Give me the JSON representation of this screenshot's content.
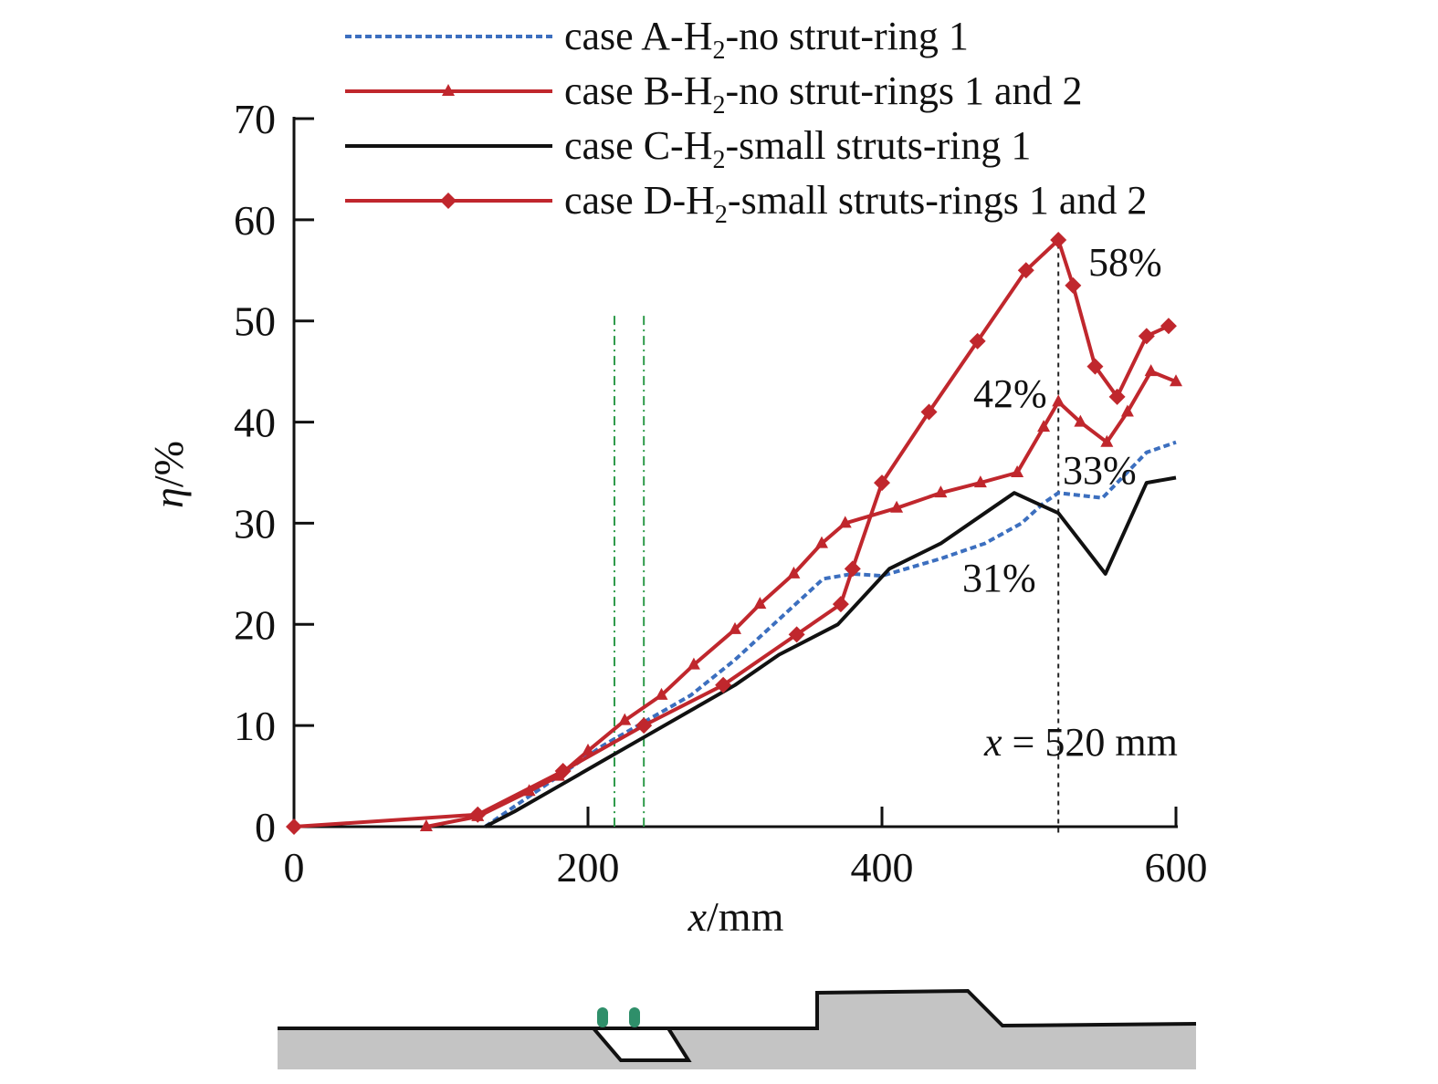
{
  "chart_data": {
    "type": "line",
    "xlabel": "x/mm",
    "ylabel": "η/%",
    "xlim": [
      0,
      600
    ],
    "ylim": [
      0,
      70
    ],
    "xticks": [
      0,
      200,
      400,
      600
    ],
    "yticks": [
      0,
      10,
      20,
      30,
      40,
      50,
      60,
      70
    ],
    "grid": false,
    "legend_position": "top",
    "series": [
      {
        "key": "A",
        "name": "case A-H2-no strut-ring 1",
        "legend_parts": [
          "case A-H",
          "2",
          "-no strut-ring 1"
        ],
        "color": "#3c6fbf",
        "style": "dotted",
        "marker": "none",
        "x": [
          130,
          150,
          180,
          210,
          240,
          270,
          300,
          330,
          360,
          380,
          400,
          440,
          470,
          495,
          510,
          520,
          550,
          580,
          600
        ],
        "y": [
          0,
          2,
          5,
          8,
          10.5,
          13,
          16.5,
          20.5,
          24.5,
          25,
          24.8,
          26.5,
          28,
          30,
          32,
          33,
          32.5,
          37,
          38
        ]
      },
      {
        "key": "B",
        "name": "case B-H2-no strut-rings 1 and 2",
        "legend_parts": [
          "case B-H",
          "2",
          "-no strut-rings 1 and 2"
        ],
        "color": "#c0272d",
        "style": "solid",
        "marker": "triangle",
        "x": [
          90,
          125,
          160,
          180,
          200,
          225,
          250,
          272,
          300,
          317,
          340,
          359,
          375,
          410,
          440,
          467,
          492,
          510,
          520,
          535,
          553,
          567,
          583,
          600
        ],
        "y": [
          0,
          1,
          3.5,
          5,
          7.5,
          10.5,
          13,
          16,
          19.5,
          22,
          25,
          28,
          30,
          31.5,
          33,
          34,
          35,
          39.5,
          42,
          40,
          38,
          41,
          45,
          44
        ]
      },
      {
        "key": "C",
        "name": "case C-H2-small struts-ring 1",
        "legend_parts": [
          "case C-H",
          "2",
          "-small struts-ring 1"
        ],
        "color": "#111111",
        "style": "solid",
        "marker": "none",
        "x": [
          130,
          150,
          180,
          210,
          240,
          270,
          300,
          330,
          370,
          405,
          440,
          470,
          490,
          505,
          520,
          552,
          580,
          600
        ],
        "y": [
          0,
          1.5,
          4,
          6.5,
          9,
          11.5,
          14,
          17,
          20,
          25.5,
          28,
          31,
          33,
          32,
          31,
          25,
          34,
          34.5
        ]
      },
      {
        "key": "D",
        "name": "case D-H2-small struts-rings 1 and 2",
        "legend_parts": [
          "case D-H",
          "2",
          "-small struts-rings 1 and 2"
        ],
        "color": "#c0272d",
        "style": "solid",
        "marker": "diamond",
        "x": [
          0,
          125,
          183,
          238,
          292,
          342,
          372,
          380,
          400,
          432,
          465,
          498,
          520,
          530,
          545,
          560,
          580,
          595
        ],
        "y": [
          0,
          1.2,
          5.5,
          10,
          14,
          19,
          22,
          25.5,
          34,
          41,
          48,
          55,
          58,
          53.5,
          45.5,
          42.5,
          48.5,
          49.5
        ]
      }
    ],
    "annotations": [
      {
        "text": "58%"
      },
      {
        "text": "42%"
      },
      {
        "text": "33%"
      },
      {
        "text": "31%"
      },
      {
        "text": "x = 520 mm"
      }
    ],
    "vertical_markers": [
      {
        "x": 218,
        "color": "#2e9a4a",
        "style": "dash-dot"
      },
      {
        "x": 238,
        "color": "#2e9a4a",
        "style": "dash-dot"
      },
      {
        "x": 520,
        "color": "#222222",
        "style": "dotted"
      }
    ]
  }
}
